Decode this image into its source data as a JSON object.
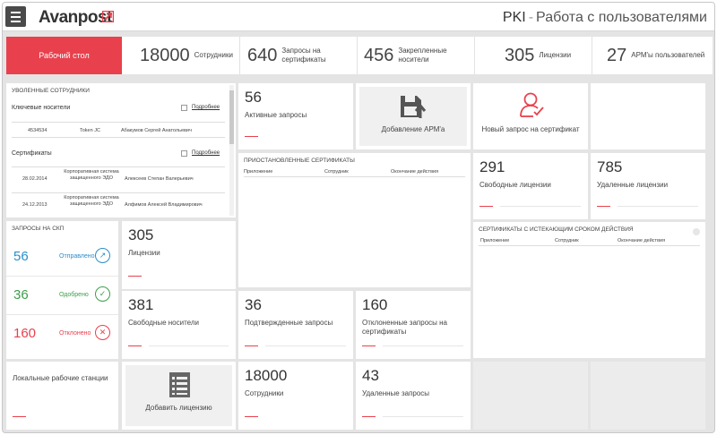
{
  "header": {
    "logo": "Avanpost",
    "title_main": "PKI",
    "title_sep": "-",
    "title_sub": "Работа с пользователями"
  },
  "topbar": {
    "active_label": "Рабочий стол",
    "items": [
      {
        "num": "18000",
        "label": "Сотрудники"
      },
      {
        "num": "640",
        "label": "Запросы на сертификаты"
      },
      {
        "num": "456",
        "label": "Закрепленные носители"
      },
      {
        "num": "305",
        "label": "Лицензии"
      },
      {
        "num": "27",
        "label": "АРМ'ы пользователей"
      }
    ]
  },
  "fired": {
    "title": "Уволенные сотрудники",
    "key_carriers": "Ключевые носители",
    "more": "Подробнее",
    "carrier_row": {
      "id": "4534534",
      "type": "Token JC",
      "name": "Абакумов Сергей Анатольевич"
    },
    "certs": "Сертификаты",
    "cert_rows": [
      {
        "date": "28.02.2014",
        "system": "Корпоративная система защищенного ЭДО",
        "name": "Алексеев Степан Валерьевич"
      },
      {
        "date": "24.12.2013",
        "system": "Корпоративная система защищенного ЭДО",
        "name": "Алфимов Алексей Владимирович"
      }
    ]
  },
  "active_requests": {
    "num": "56",
    "label": "Активные запросы"
  },
  "add_arm": {
    "label": "Добавление АРМ'а"
  },
  "new_request": {
    "label": "Новый запрос на сертификат"
  },
  "suspended": {
    "title": "Приостановленные сертификаты",
    "cols": [
      "Приложение",
      "Сотрудник",
      "Окончание действия"
    ]
  },
  "free_lic": {
    "num": "291",
    "label": "Свободные лицензии"
  },
  "deleted_lic": {
    "num": "785",
    "label": "Удаленные лицензии"
  },
  "spq": {
    "title": "Запросы на СКП",
    "rows": [
      {
        "num": "56",
        "label": "Отправлено",
        "color": "#2a8fc8"
      },
      {
        "num": "36",
        "label": "Одобрено",
        "color": "#3ca04a"
      },
      {
        "num": "160",
        "label": "Отклонено",
        "color": "#e8414d"
      }
    ]
  },
  "licenses": {
    "num": "305",
    "label": "Лицензии"
  },
  "expiring": {
    "title": "Сертификаты с истекающим сроком действия",
    "cols": [
      "Приложение",
      "Сотрудник",
      "Окончание действия"
    ]
  },
  "free_carriers": {
    "num": "381",
    "label": "Свободные носители"
  },
  "confirmed": {
    "num": "36",
    "label": "Подтвержденные запросы"
  },
  "rejected": {
    "num": "160",
    "label": "Отклоненные запросы на сертификаты"
  },
  "local_ws": {
    "label": "Локальные рабочие станции"
  },
  "add_license": {
    "label": "Добавить лицензию"
  },
  "employees": {
    "num": "18000",
    "label": "Сотрудники"
  },
  "deleted_req": {
    "num": "43",
    "label": "Удаленные запросы"
  },
  "colors": {
    "accent": "#e8414d",
    "bg": "#e4e4e4"
  }
}
